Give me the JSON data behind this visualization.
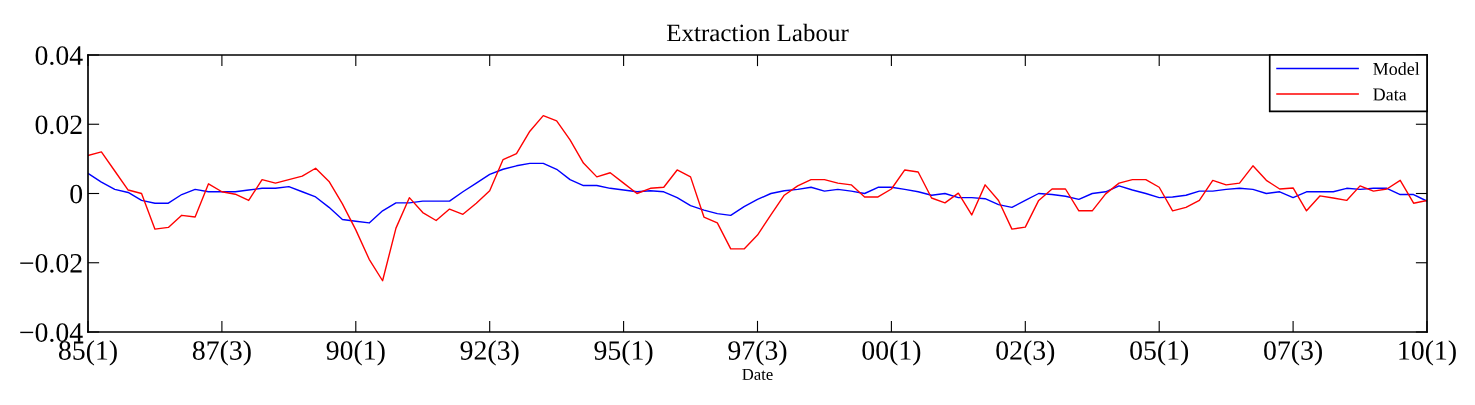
{
  "chart_data": {
    "type": "line",
    "title": "Extraction Labour",
    "xlabel": "Date",
    "categories": [
      "85(1)",
      null,
      null,
      null,
      null,
      null,
      null,
      null,
      null,
      null,
      "87(3)",
      null,
      null,
      null,
      null,
      null,
      null,
      null,
      null,
      null,
      "90(1)",
      null,
      null,
      null,
      null,
      null,
      null,
      null,
      null,
      null,
      "92(3)",
      null,
      null,
      null,
      null,
      null,
      null,
      null,
      null,
      null,
      "95(1)",
      null,
      null,
      null,
      null,
      null,
      null,
      null,
      null,
      null,
      "97(3)",
      null,
      null,
      null,
      null,
      null,
      null,
      null,
      null,
      null,
      "00(1)",
      null,
      null,
      null,
      null,
      null,
      null,
      null,
      null,
      null,
      "02(3)",
      null,
      null,
      null,
      null,
      null,
      null,
      null,
      null,
      null,
      "05(1)",
      null,
      null,
      null,
      null,
      null,
      null,
      null,
      null,
      null,
      "07(3)",
      null,
      null,
      null,
      null,
      null,
      null,
      null,
      null,
      null,
      "10(1)"
    ],
    "series": [
      {
        "name": "Model",
        "color": "#0000ff",
        "values": [
          0.0058,
          0.0033,
          0.0012,
          0.0003,
          -0.002,
          -0.0028,
          -0.0028,
          -0.0003,
          0.0012,
          0.0005,
          0.0005,
          0.0005,
          0.001,
          0.0015,
          0.0015,
          0.002,
          0.0005,
          -0.001,
          -0.004,
          -0.0075,
          -0.008,
          -0.0085,
          -0.005,
          -0.0027,
          -0.0027,
          -0.0022,
          -0.0022,
          -0.0022,
          0.0005,
          0.003,
          0.0055,
          0.007,
          0.008,
          0.0087,
          0.0087,
          0.007,
          0.004,
          0.0023,
          0.0023,
          0.0015,
          0.001,
          0.0005,
          0.0008,
          0.0005,
          -0.0012,
          -0.0035,
          -0.0048,
          -0.0058,
          -0.0063,
          -0.0038,
          -0.0017,
          0.0,
          0.0008,
          0.0012,
          0.0018,
          0.0007,
          0.0012,
          0.0007,
          0.0,
          0.0018,
          0.0018,
          0.0012,
          0.0005,
          -0.0005,
          0.0,
          -0.0012,
          -0.0012,
          -0.0015,
          -0.0032,
          -0.004,
          -0.002,
          0.0,
          -0.0003,
          -0.0008,
          -0.0017,
          0.0,
          0.0005,
          0.0022,
          0.001,
          0.0,
          -0.0012,
          -0.001,
          -0.0005,
          0.0007,
          0.0007,
          0.0012,
          0.0015,
          0.0012,
          0.0,
          0.0005,
          -0.0012,
          0.0005,
          0.0005,
          0.0005,
          0.0015,
          0.0012,
          0.0015,
          0.0015,
          -0.0003,
          -0.0003,
          -0.0022
        ]
      },
      {
        "name": "Data",
        "color": "#ff0000",
        "values": [
          0.011,
          0.012,
          0.0065,
          0.001,
          0.0,
          -0.0103,
          -0.0098,
          -0.0063,
          -0.0068,
          0.0028,
          0.0005,
          -0.0002,
          -0.002,
          0.004,
          0.003,
          0.004,
          0.005,
          0.0073,
          0.0035,
          -0.003,
          -0.0105,
          -0.019,
          -0.0252,
          -0.01,
          -0.0012,
          -0.0055,
          -0.0078,
          -0.0045,
          -0.006,
          -0.0028,
          0.0008,
          0.0098,
          0.0115,
          0.018,
          0.0225,
          0.021,
          0.0155,
          0.0088,
          0.0048,
          0.006,
          0.003,
          0.0,
          0.0015,
          0.0018,
          0.0068,
          0.0048,
          -0.0068,
          -0.0085,
          -0.016,
          -0.016,
          -0.012,
          -0.0062,
          -0.0005,
          0.0022,
          0.004,
          0.004,
          0.003,
          0.0025,
          -0.001,
          -0.001,
          0.0013,
          0.0068,
          0.0062,
          -0.0013,
          -0.0027,
          0.0001,
          -0.0062,
          0.0025,
          -0.002,
          -0.0103,
          -0.0097,
          -0.002,
          0.0013,
          0.0013,
          -0.005,
          -0.005,
          -0.0001,
          0.003,
          0.004,
          0.004,
          0.0018,
          -0.005,
          -0.004,
          -0.002,
          0.0038,
          0.0025,
          0.003,
          0.008,
          0.0038,
          0.0013,
          0.0016,
          -0.005,
          -0.0007,
          -0.0013,
          -0.002,
          0.0022,
          0.0007,
          0.0013,
          0.0038,
          -0.0028,
          -0.002
        ]
      }
    ],
    "ylim": [
      -0.04,
      0.04
    ],
    "yticks": [
      {
        "value": -0.04,
        "label": "−0.04"
      },
      {
        "value": -0.02,
        "label": "−0.02"
      },
      {
        "value": 0,
        "label": "0"
      },
      {
        "value": 0.02,
        "label": "0.02"
      },
      {
        "value": 0.04,
        "label": "0.04"
      }
    ],
    "legend": "top right",
    "grid": false,
    "line_style": "solid"
  }
}
